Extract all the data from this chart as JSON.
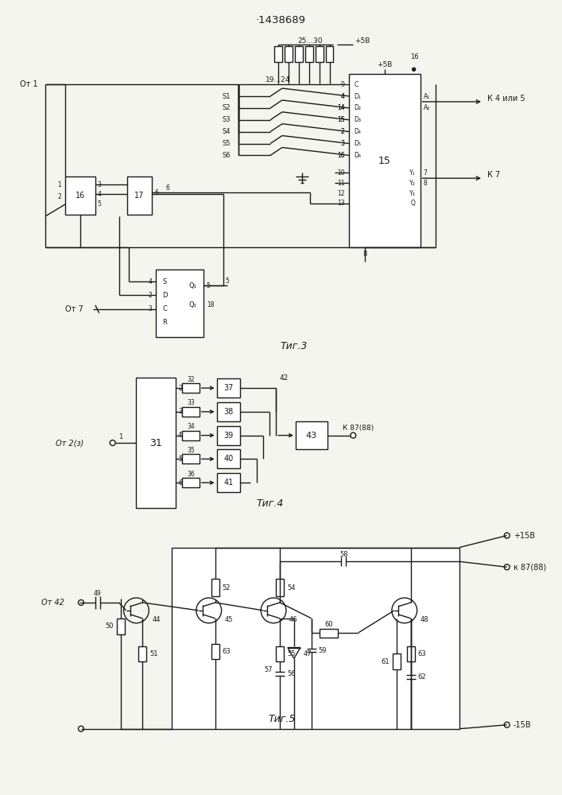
{
  "title": "·1438689",
  "fig3_label": "Τиг.3",
  "fig4_label": "Τиг.4",
  "fig5_label": "Τиг.5",
  "bg_color": "#f5f5f0",
  "line_color": "#1a1a1a",
  "lw": 1.0
}
